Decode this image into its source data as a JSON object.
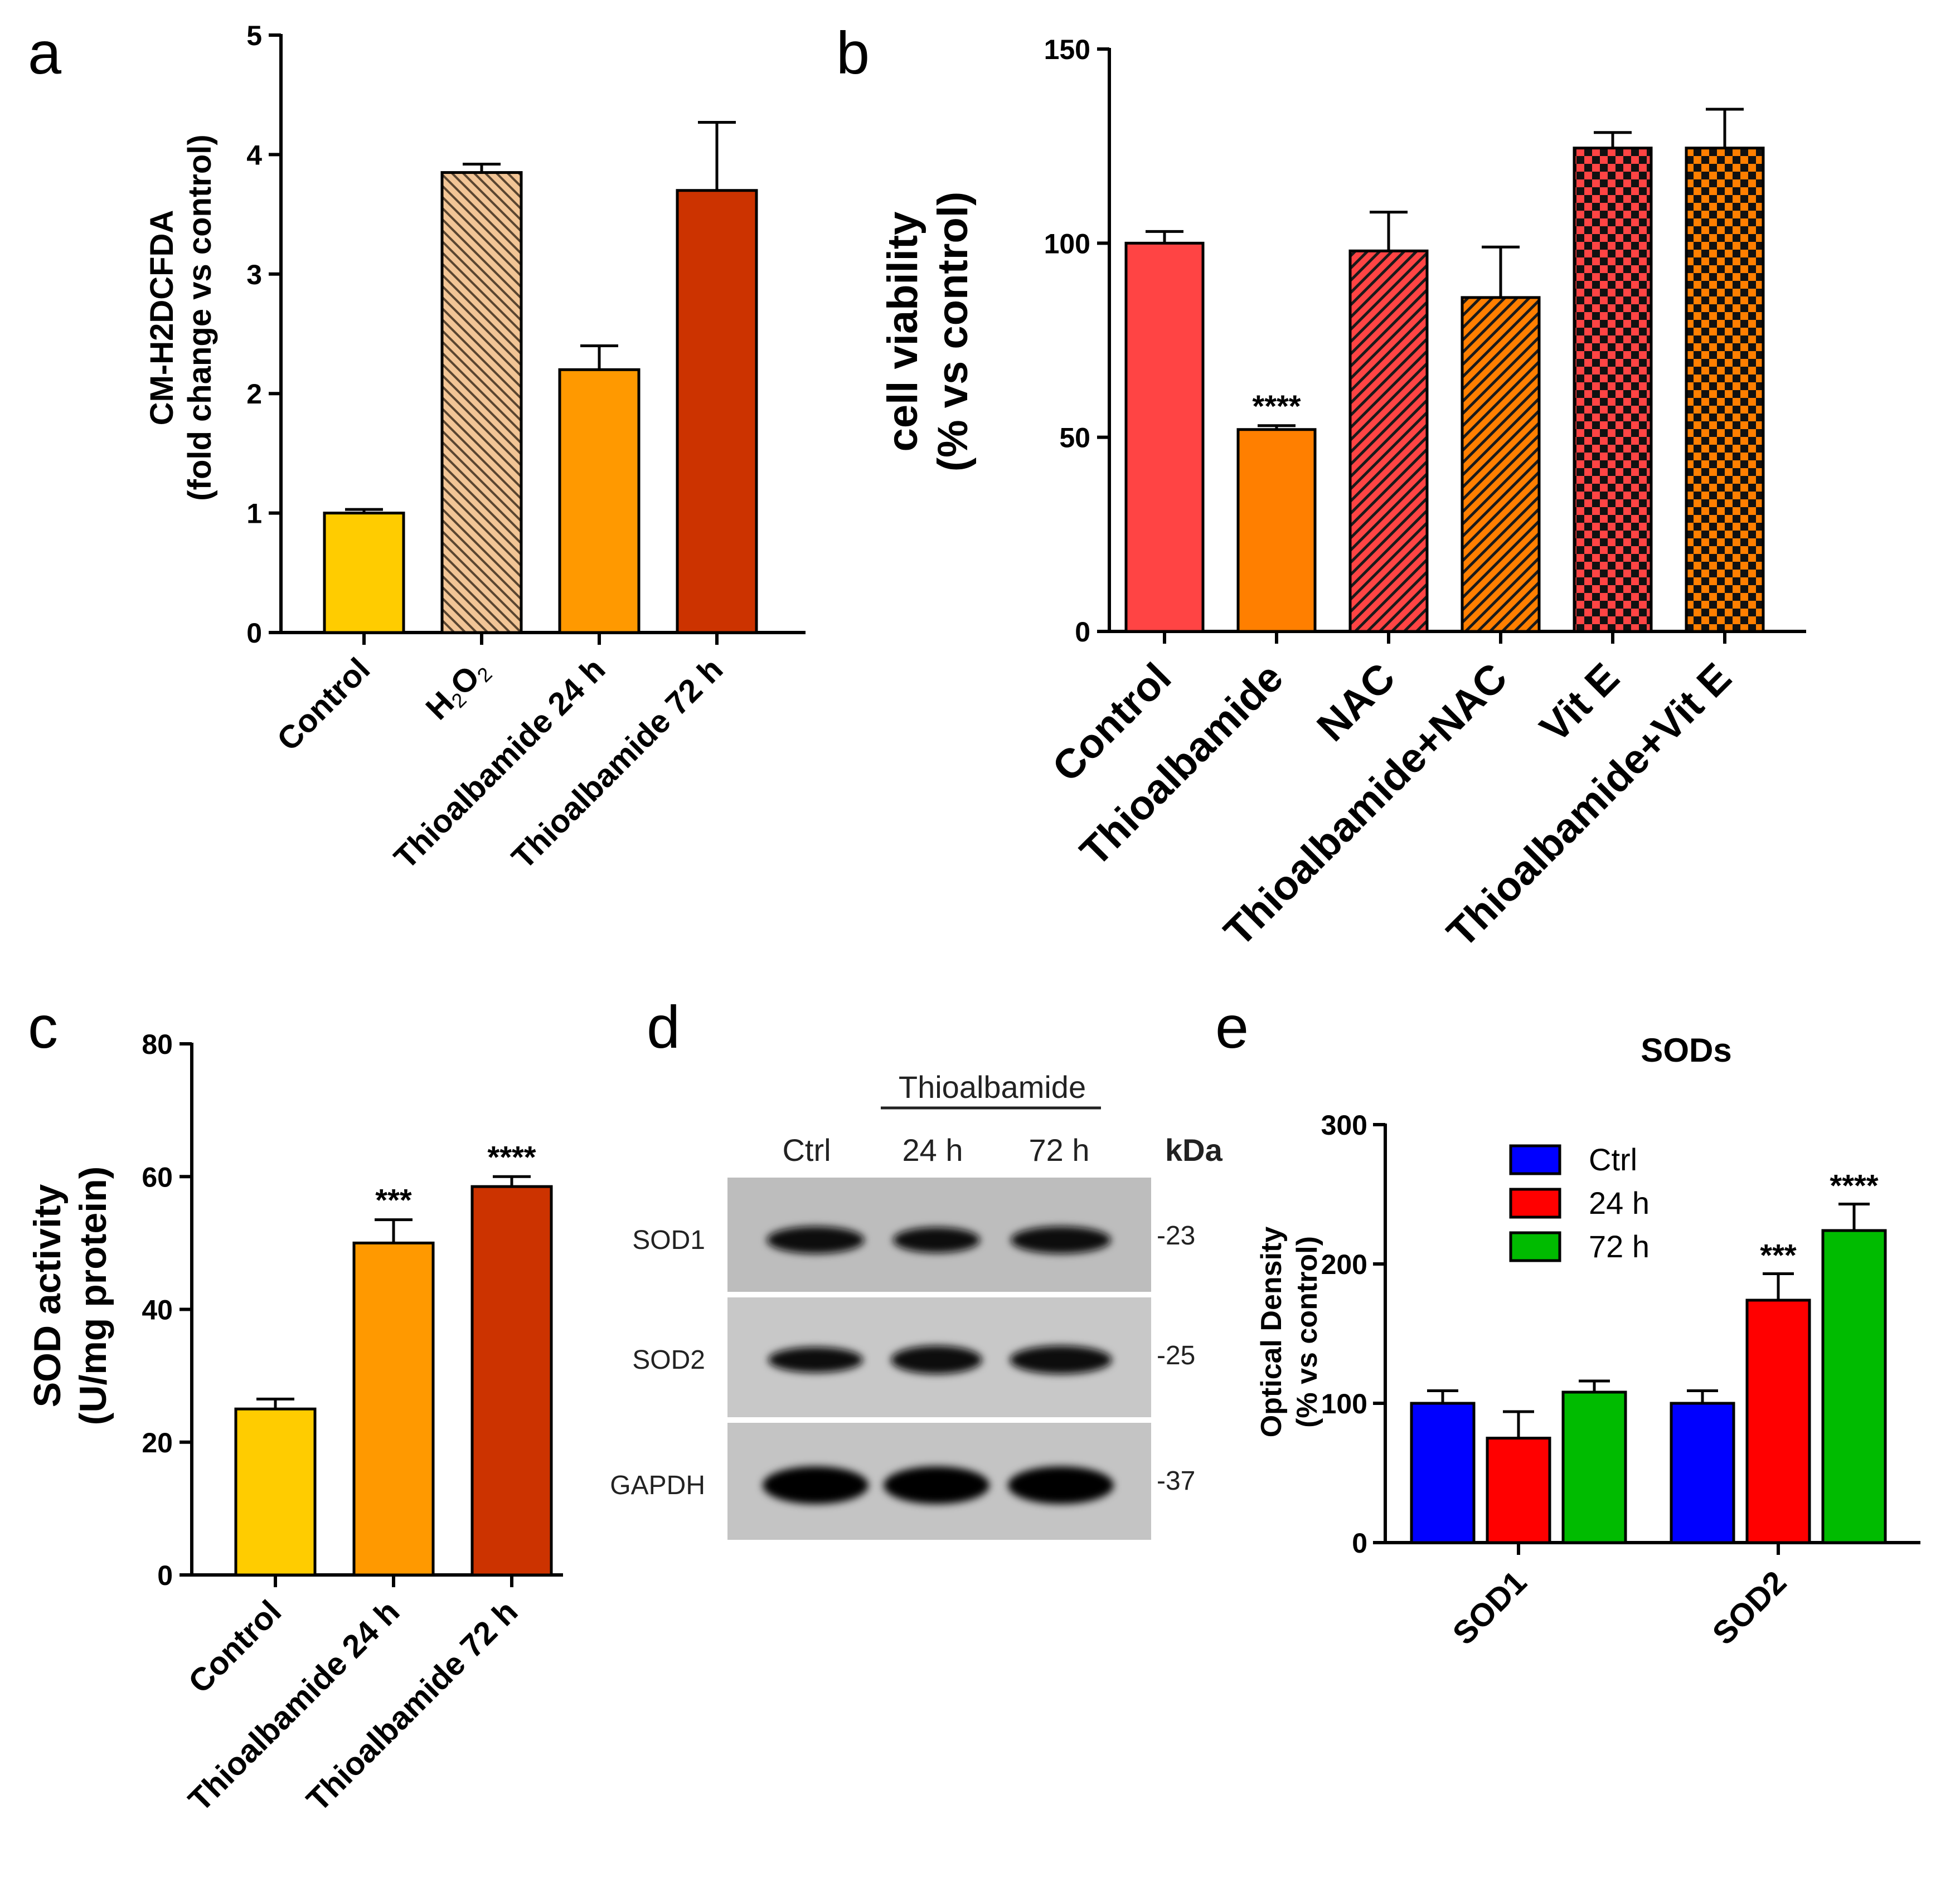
{
  "panel_labels": [
    "a",
    "b",
    "c",
    "d",
    "e"
  ],
  "chart_data": [
    {
      "id": "a",
      "type": "bar",
      "title": "",
      "xlabel": "",
      "ylabel_lines": [
        "CM-H2DCFDA",
        "(fold change vs control)"
      ],
      "ylim": [
        0,
        5
      ],
      "yticks": [
        0,
        1,
        2,
        3,
        4,
        5
      ],
      "categories": [
        "Control",
        "H2O2",
        "Thioalbamide 24 h",
        "Thioalbamide 72 h"
      ],
      "values": [
        1.0,
        3.85,
        2.2,
        3.7
      ],
      "errors": [
        0.03,
        0.07,
        0.2,
        0.57
      ],
      "annotations": [
        "",
        "",
        "",
        ""
      ],
      "colors": [
        "#FFCC00",
        "#F2C596",
        "#FF9900",
        "#CC3300"
      ],
      "patterns": [
        "solid",
        "hatch-back",
        "solid",
        "solid"
      ]
    },
    {
      "id": "b",
      "type": "bar",
      "title": "",
      "xlabel": "",
      "ylabel_lines": [
        "cell viability",
        "(% vs control)"
      ],
      "ylim": [
        0,
        150
      ],
      "yticks": [
        0,
        50,
        100,
        150
      ],
      "categories": [
        "Control",
        "Thioalbamide",
        "NAC",
        "Thioalbamide+NAC",
        "Vit E",
        "Thioalbamide+Vit E"
      ],
      "values": [
        100,
        52,
        98,
        86,
        124.5,
        124.5
      ],
      "errors": [
        3,
        1,
        10,
        13,
        4,
        10
      ],
      "annotations": [
        "",
        "****",
        "",
        "",
        "",
        ""
      ],
      "colors": [
        "#FF4444",
        "#FF7F00",
        "#FF4444",
        "#FF7F00",
        "#FF4444",
        "#FF7F00"
      ],
      "patterns": [
        "solid",
        "solid",
        "hatch",
        "hatch",
        "checker",
        "checker"
      ]
    },
    {
      "id": "c",
      "type": "bar",
      "title": "",
      "xlabel": "",
      "ylabel_lines": [
        "SOD activity",
        "(U/mg protein)"
      ],
      "ylim": [
        0,
        80
      ],
      "yticks": [
        0,
        20,
        40,
        60,
        80
      ],
      "categories": [
        "Control",
        "Thioalbamide 24 h",
        "Thioalbamide 72 h"
      ],
      "values": [
        25,
        50,
        58.5
      ],
      "errors": [
        1.5,
        3.5,
        1.5
      ],
      "annotations": [
        "",
        "***",
        "****"
      ],
      "colors": [
        "#FFCC00",
        "#FF9900",
        "#CC3300"
      ],
      "patterns": [
        "solid",
        "solid",
        "solid"
      ]
    },
    {
      "id": "e",
      "type": "bar",
      "title": "SODs",
      "xlabel": "",
      "ylabel_lines": [
        "Optical Density",
        "(% vs control)"
      ],
      "ylim": [
        0,
        300
      ],
      "yticks": [
        0,
        100,
        200,
        300
      ],
      "categories": [
        "SOD1",
        "SOD2"
      ],
      "series": [
        {
          "name": "Ctrl",
          "color": "#0000FF",
          "values": [
            100,
            100
          ],
          "errors": [
            9,
            9
          ],
          "annotations": [
            "",
            ""
          ]
        },
        {
          "name": "24 h",
          "color": "#FF0000",
          "values": [
            75,
            174
          ],
          "errors": [
            19,
            19
          ],
          "annotations": [
            "",
            "***"
          ]
        },
        {
          "name": "72 h",
          "color": "#00BB00",
          "values": [
            108,
            224
          ],
          "errors": [
            8,
            19
          ],
          "annotations": [
            "",
            "****"
          ]
        }
      ],
      "legend_position": "top-left"
    }
  ],
  "blot": {
    "group_label": "Thioalbamide",
    "lanes": [
      "Ctrl",
      "24 h",
      "72 h"
    ],
    "unit_label": "kDa",
    "rows": [
      {
        "protein": "SOD1",
        "kda": "-23",
        "intensities": [
          0.85,
          0.7,
          0.85
        ]
      },
      {
        "protein": "SOD2",
        "kda": "-25",
        "intensities": [
          0.7,
          0.95,
          0.95
        ]
      },
      {
        "protein": "GAPDH",
        "kda": "-37",
        "intensities": [
          1.0,
          1.0,
          1.0
        ]
      }
    ]
  }
}
